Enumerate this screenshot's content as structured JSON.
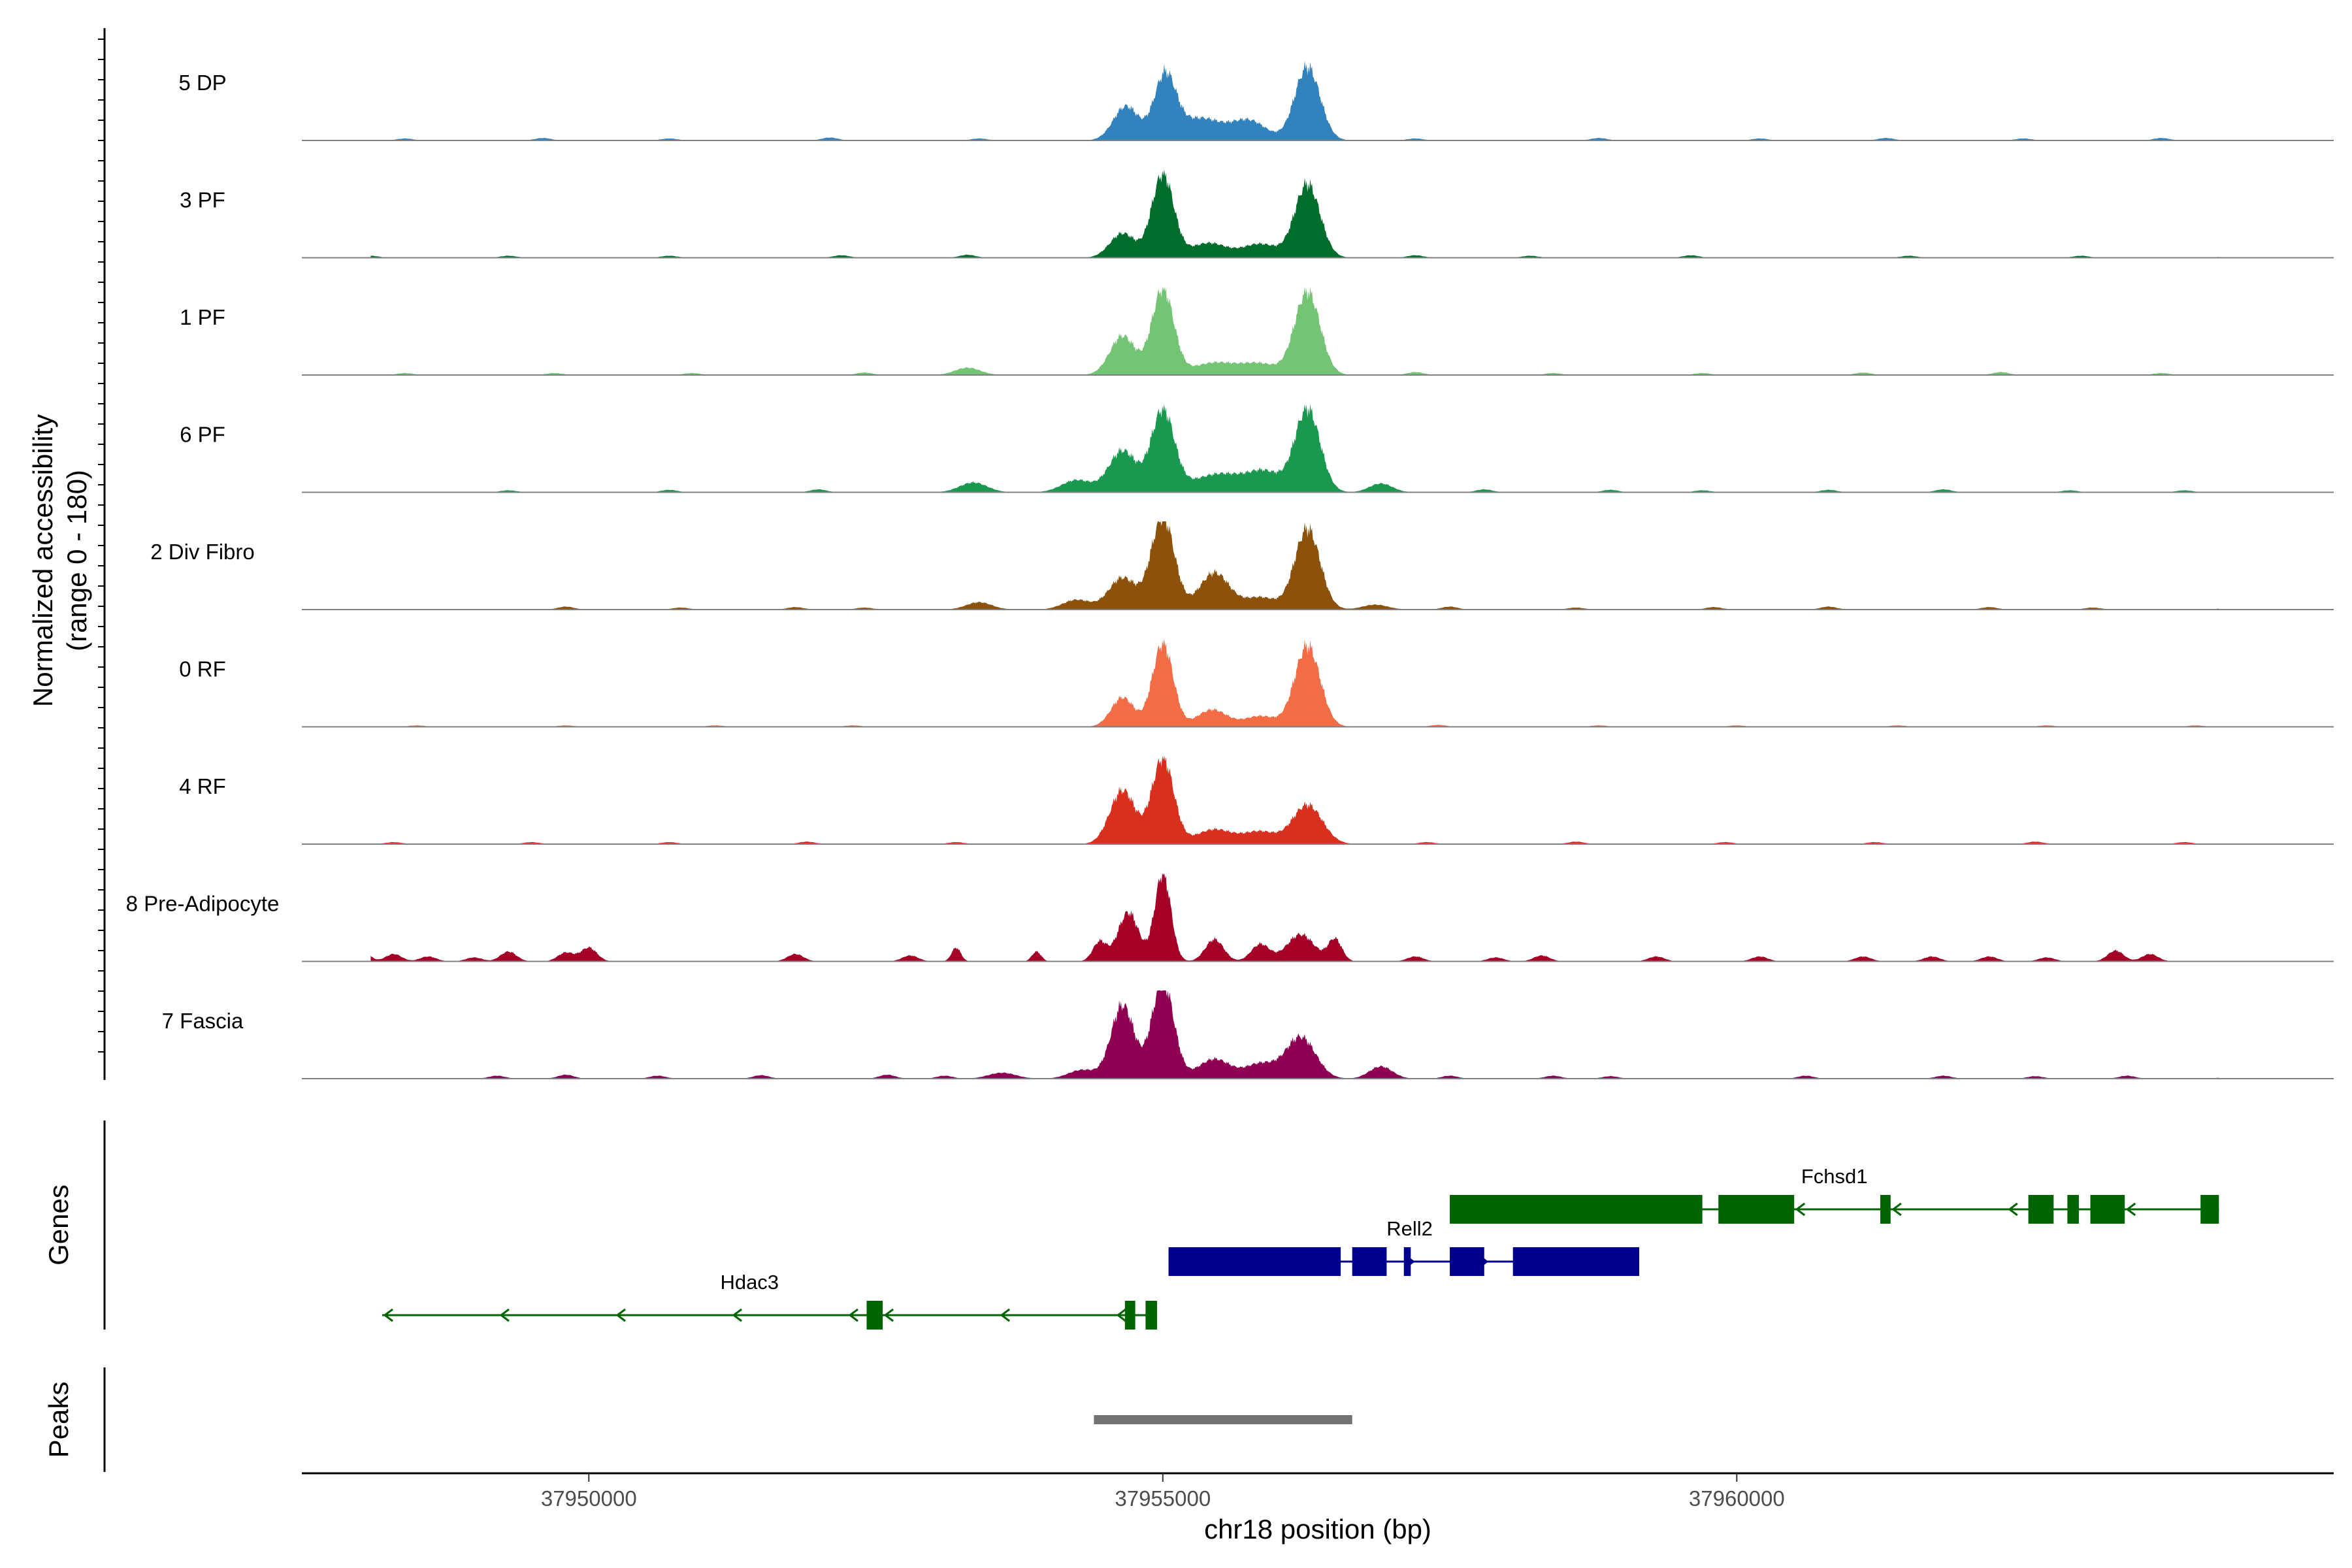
{
  "chart_data": {
    "type": "area",
    "title": "",
    "ylabel_line1": "Normalized accessibility",
    "ylabel_line2": "(range 0 - 180)",
    "xlabel": "chr18 position (bp)",
    "y_range": [
      0,
      180
    ],
    "x_range": [
      37947500,
      37965200
    ],
    "x_ticks": [
      {
        "value": 37950000,
        "label": "37950000"
      },
      {
        "value": 37955000,
        "label": "37955000"
      },
      {
        "value": 37960000,
        "label": "37960000"
      }
    ],
    "tracks": [
      {
        "name": "5 DP",
        "color": "#3182bd",
        "peaks": [
          [
            37954680,
            70,
            110
          ],
          [
            37955020,
            130,
            95
          ],
          [
            37955330,
            45,
            180
          ],
          [
            37955750,
            40,
            150
          ],
          [
            37956260,
            150,
            110
          ]
        ],
        "bg": [
          [
            37948400,
            4
          ],
          [
            37949600,
            5
          ],
          [
            37950700,
            4
          ],
          [
            37952100,
            6
          ],
          [
            37953400,
            4
          ],
          [
            37957200,
            4
          ],
          [
            37958800,
            5
          ],
          [
            37960200,
            4
          ],
          [
            37961300,
            5
          ],
          [
            37962500,
            4
          ],
          [
            37963700,
            5
          ],
          [
            37964600,
            4
          ]
        ]
      },
      {
        "name": "3 PF",
        "color": "#006d2c",
        "peaks": [
          [
            37954650,
            50,
            110
          ],
          [
            37955000,
            170,
            95
          ],
          [
            37955400,
            30,
            160
          ],
          [
            37955850,
            28,
            150
          ],
          [
            37956260,
            150,
            110
          ]
        ],
        "bg": [
          [
            37948100,
            4
          ],
          [
            37949300,
            4
          ],
          [
            37950700,
            4
          ],
          [
            37952200,
            5
          ],
          [
            37953300,
            6
          ],
          [
            37957200,
            5
          ],
          [
            37958200,
            4
          ],
          [
            37959600,
            5
          ],
          [
            37961500,
            4
          ],
          [
            37963000,
            4
          ],
          [
            37964300,
            5
          ]
        ]
      },
      {
        "name": "1 PF",
        "color": "#74c476",
        "peaks": [
          [
            37953300,
            15,
            110
          ],
          [
            37954650,
            80,
            110
          ],
          [
            37955000,
            175,
            95
          ],
          [
            37955450,
            25,
            190
          ],
          [
            37955850,
            22,
            160
          ],
          [
            37956260,
            170,
            110
          ]
        ],
        "bg": [
          [
            37948400,
            4
          ],
          [
            37949700,
            4
          ],
          [
            37950900,
            4
          ],
          [
            37952400,
            5
          ],
          [
            37957200,
            6
          ],
          [
            37958400,
            4
          ],
          [
            37959700,
            4
          ],
          [
            37961100,
            5
          ],
          [
            37962300,
            6
          ],
          [
            37963700,
            4
          ],
          [
            37964600,
            4
          ]
        ]
      },
      {
        "name": "6 PF",
        "color": "#1a9850",
        "peaks": [
          [
            37953350,
            20,
            120
          ],
          [
            37954250,
            25,
            130
          ],
          [
            37954650,
            85,
            120
          ],
          [
            37955000,
            165,
            100
          ],
          [
            37955500,
            38,
            240
          ],
          [
            37955900,
            35,
            140
          ],
          [
            37956260,
            170,
            110
          ],
          [
            37956900,
            18,
            100
          ]
        ],
        "bg": [
          [
            37949300,
            4
          ],
          [
            37950700,
            5
          ],
          [
            37952000,
            6
          ],
          [
            37957800,
            6
          ],
          [
            37958900,
            5
          ],
          [
            37959700,
            4
          ],
          [
            37960800,
            5
          ],
          [
            37961800,
            6
          ],
          [
            37962900,
            4
          ],
          [
            37963900,
            4
          ]
        ]
      },
      {
        "name": "2 Div Fibro",
        "color": "#8c510a",
        "peaks": [
          [
            37953400,
            15,
            110
          ],
          [
            37954250,
            20,
            120
          ],
          [
            37954650,
            65,
            120
          ],
          [
            37955000,
            190,
            100
          ],
          [
            37955450,
            75,
            130
          ],
          [
            37955850,
            25,
            140
          ],
          [
            37956260,
            165,
            110
          ],
          [
            37956850,
            10,
            110
          ]
        ],
        "bg": [
          [
            37949800,
            6
          ],
          [
            37950800,
            4
          ],
          [
            37951800,
            5
          ],
          [
            37952400,
            4
          ],
          [
            37957500,
            6
          ],
          [
            37958600,
            4
          ],
          [
            37959800,
            5
          ],
          [
            37960800,
            6
          ],
          [
            37962200,
            5
          ],
          [
            37963100,
            4
          ],
          [
            37964300,
            6
          ]
        ]
      },
      {
        "name": "0 RF",
        "color": "#f26c45",
        "peaks": [
          [
            37954650,
            60,
            100
          ],
          [
            37955000,
            170,
            90
          ],
          [
            37955430,
            35,
            130
          ],
          [
            37955850,
            22,
            140
          ],
          [
            37956260,
            165,
            110
          ]
        ],
        "bg": [
          [
            37948500,
            3
          ],
          [
            37949800,
            3
          ],
          [
            37951100,
            3
          ],
          [
            37952300,
            3
          ],
          [
            37957400,
            4
          ],
          [
            37958800,
            3
          ],
          [
            37960000,
            3
          ],
          [
            37961400,
            3
          ],
          [
            37962700,
            3
          ],
          [
            37964000,
            3
          ]
        ]
      },
      {
        "name": "4 RF",
        "color": "#d7301f",
        "peaks": [
          [
            37954650,
            110,
            110
          ],
          [
            37955000,
            175,
            95
          ],
          [
            37955450,
            30,
            160
          ],
          [
            37955850,
            25,
            140
          ],
          [
            37956260,
            80,
            130
          ]
        ],
        "bg": [
          [
            37948300,
            4
          ],
          [
            37949500,
            4
          ],
          [
            37950700,
            4
          ],
          [
            37951900,
            5
          ],
          [
            37953200,
            4
          ],
          [
            37957300,
            4
          ],
          [
            37958600,
            5
          ],
          [
            37959900,
            4
          ],
          [
            37961200,
            4
          ],
          [
            37962600,
            5
          ],
          [
            37963900,
            4
          ]
        ]
      },
      {
        "name": "8 Pre-Adipocyte",
        "color": "#a50026",
        "peaks": [
          [
            37953200,
            28,
            40
          ],
          [
            37953900,
            20,
            40
          ],
          [
            37954450,
            40,
            60
          ],
          [
            37954700,
            100,
            90
          ],
          [
            37955000,
            180,
            70
          ],
          [
            37955450,
            45,
            80
          ],
          [
            37955850,
            35,
            80
          ],
          [
            37956200,
            55,
            120
          ],
          [
            37956500,
            45,
            60
          ]
        ],
        "bg": [
          [
            37948000,
            30
          ],
          [
            37948300,
            15
          ],
          [
            37948600,
            10
          ],
          [
            37949000,
            8
          ],
          [
            37949300,
            20
          ],
          [
            37949800,
            18
          ],
          [
            37950000,
            28
          ],
          [
            37951800,
            15
          ],
          [
            37952800,
            12
          ],
          [
            37957200,
            10
          ],
          [
            37957900,
            8
          ],
          [
            37958300,
            12
          ],
          [
            37959300,
            10
          ],
          [
            37960200,
            10
          ],
          [
            37961100,
            10
          ],
          [
            37961700,
            10
          ],
          [
            37962200,
            10
          ],
          [
            37962700,
            8
          ],
          [
            37963300,
            22
          ],
          [
            37963600,
            15
          ]
        ]
      },
      {
        "name": "7 Fascia",
        "color": "#8e0152",
        "peaks": [
          [
            37953600,
            12,
            120
          ],
          [
            37954300,
            18,
            120
          ],
          [
            37954650,
            150,
            100
          ],
          [
            37955000,
            200,
            95
          ],
          [
            37955450,
            40,
            140
          ],
          [
            37955850,
            30,
            130
          ],
          [
            37956200,
            85,
            130
          ],
          [
            37956900,
            25,
            100
          ]
        ],
        "bg": [
          [
            37949200,
            6
          ],
          [
            37949800,
            8
          ],
          [
            37950600,
            6
          ],
          [
            37951500,
            7
          ],
          [
            37952600,
            8
          ],
          [
            37953100,
            6
          ],
          [
            37957500,
            6
          ],
          [
            37958400,
            6
          ],
          [
            37958900,
            5
          ],
          [
            37960600,
            6
          ],
          [
            37961800,
            6
          ],
          [
            37962600,
            5
          ],
          [
            37963400,
            6
          ],
          [
            37964300,
            6
          ]
        ]
      }
    ],
    "genes_label": "Genes",
    "genes": [
      {
        "name": "Fchsd1",
        "color": "#006400",
        "strand": "-",
        "row": 0,
        "start": 37957500,
        "end": 37964200,
        "label_pos": 37960850,
        "exons": [
          [
            37957500,
            37959700
          ],
          [
            37959840,
            37960500
          ],
          [
            37961250,
            37961340
          ],
          [
            37962540,
            37962760
          ],
          [
            37962880,
            37962980
          ],
          [
            37963080,
            37963380
          ],
          [
            37964040,
            37964200
          ]
        ]
      },
      {
        "name": "Rell2",
        "color": "#00008b",
        "strand": "+",
        "row": 1,
        "start": 37955050,
        "end": 37959150,
        "label_pos": 37957150,
        "exons": [
          [
            37955050,
            37956550
          ],
          [
            37956650,
            37956950
          ],
          [
            37957100,
            37957160
          ],
          [
            37957500,
            37957800
          ],
          [
            37958050,
            37959150
          ]
        ]
      },
      {
        "name": "Hdac3",
        "color": "#006400",
        "strand": "-",
        "row": 2,
        "start": 37948200,
        "end": 37954950,
        "label_pos": 37951400,
        "exons": [
          [
            37952420,
            37952560
          ],
          [
            37954670,
            37954760
          ],
          [
            37954850,
            37954950
          ]
        ]
      }
    ],
    "peaks_label": "Peaks",
    "peak_regions": [
      [
        37954400,
        37956650
      ]
    ]
  }
}
